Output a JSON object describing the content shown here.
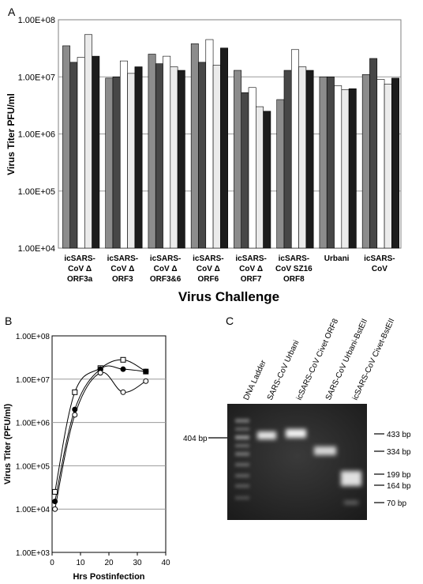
{
  "panels": {
    "a": "A",
    "b": "B",
    "c": "C"
  },
  "chart_data": [
    {
      "panel": "A",
      "type": "bar",
      "title": "",
      "xlabel": "Virus Challenge",
      "ylabel": "Virus Titer PFU/ml",
      "yscale": "log",
      "ylim": [
        10000,
        100000000
      ],
      "yticks": [
        "1.00E+04",
        "1.00E+05",
        "1.00E+06",
        "1.00E+07",
        "1.00E+08"
      ],
      "grid": true,
      "categories": [
        [
          "icSARS-",
          "CoV Δ",
          "ORF3a"
        ],
        [
          "icSARS-",
          "CoV Δ",
          "ORF3"
        ],
        [
          "icSARS-",
          "CoV Δ",
          "ORF3&6"
        ],
        [
          "icSARS-",
          "CoV Δ",
          "ORF6"
        ],
        [
          "icSARS-",
          "CoV Δ",
          "ORF7"
        ],
        [
          "icSARS-",
          "CoV  SZ16",
          "ORF8"
        ],
        [
          "Urbani"
        ],
        [
          "icSARS-",
          "CoV"
        ]
      ],
      "series": [
        {
          "color": "#8c8c8c",
          "values": [
            35000000,
            9500000,
            25000000,
            38000000,
            13000000,
            4000000,
            10000000,
            11000000
          ]
        },
        {
          "color": "#474747",
          "values": [
            18000000,
            10000000,
            17000000,
            18000000,
            5300000,
            13000000,
            10000000,
            21000000
          ]
        },
        {
          "color": "#ffffff",
          "values": [
            22000000,
            19000000,
            23000000,
            45000000,
            6500000,
            30000000,
            7000000,
            9000000
          ]
        },
        {
          "color": "#ebebeb",
          "values": [
            55000000,
            11500000,
            15000000,
            16000000,
            3000000,
            15000000,
            6000000,
            7500000
          ]
        },
        {
          "color": "#1c1c1c",
          "values": [
            23000000,
            15000000,
            13000000,
            32000000,
            2500000,
            13000000,
            6200000,
            9500000
          ]
        }
      ]
    },
    {
      "panel": "B",
      "type": "line",
      "title": "",
      "xlabel": "Hrs Postinfection",
      "ylabel": "Virus Titer  (PFU/ml)",
      "yscale": "log",
      "ylim": [
        1000,
        100000000
      ],
      "xlim": [
        0,
        40
      ],
      "xticks": [
        "0",
        "10",
        "20",
        "30",
        "40"
      ],
      "yticks": [
        "1.00E+03",
        "1.00E+04",
        "1.00E+05",
        "1.00E+06",
        "1.00E+07",
        "1.00E+08"
      ],
      "grid": true,
      "series": [
        {
          "marker": "square",
          "x": [
            1,
            8,
            17,
            25,
            33
          ],
          "y": [
            25000,
            5000000,
            18000000,
            28000000,
            15000000
          ]
        },
        {
          "marker": "filled-circle",
          "x": [
            1,
            8,
            17,
            25,
            33
          ],
          "y": [
            15000,
            2000000,
            17000000,
            17000000,
            15000000
          ]
        },
        {
          "marker": "open-circle",
          "x": [
            1,
            8,
            17,
            25,
            33
          ],
          "y": [
            10000,
            1500000,
            14000000,
            5000000,
            9000000
          ]
        }
      ]
    }
  ],
  "gel": {
    "lanes": [
      "DNA Ladder",
      "SARS-CoV Urbani",
      "icSARS-CoV Civet ORF8",
      "SARS-CoV Urbani-BstEII",
      "icSARS-CoV Civet-BstEII"
    ],
    "left_marker": "404 bp",
    "right_markers": [
      "433 bp",
      "334 bp",
      "199 bp",
      "164 bp",
      "70 bp"
    ]
  }
}
